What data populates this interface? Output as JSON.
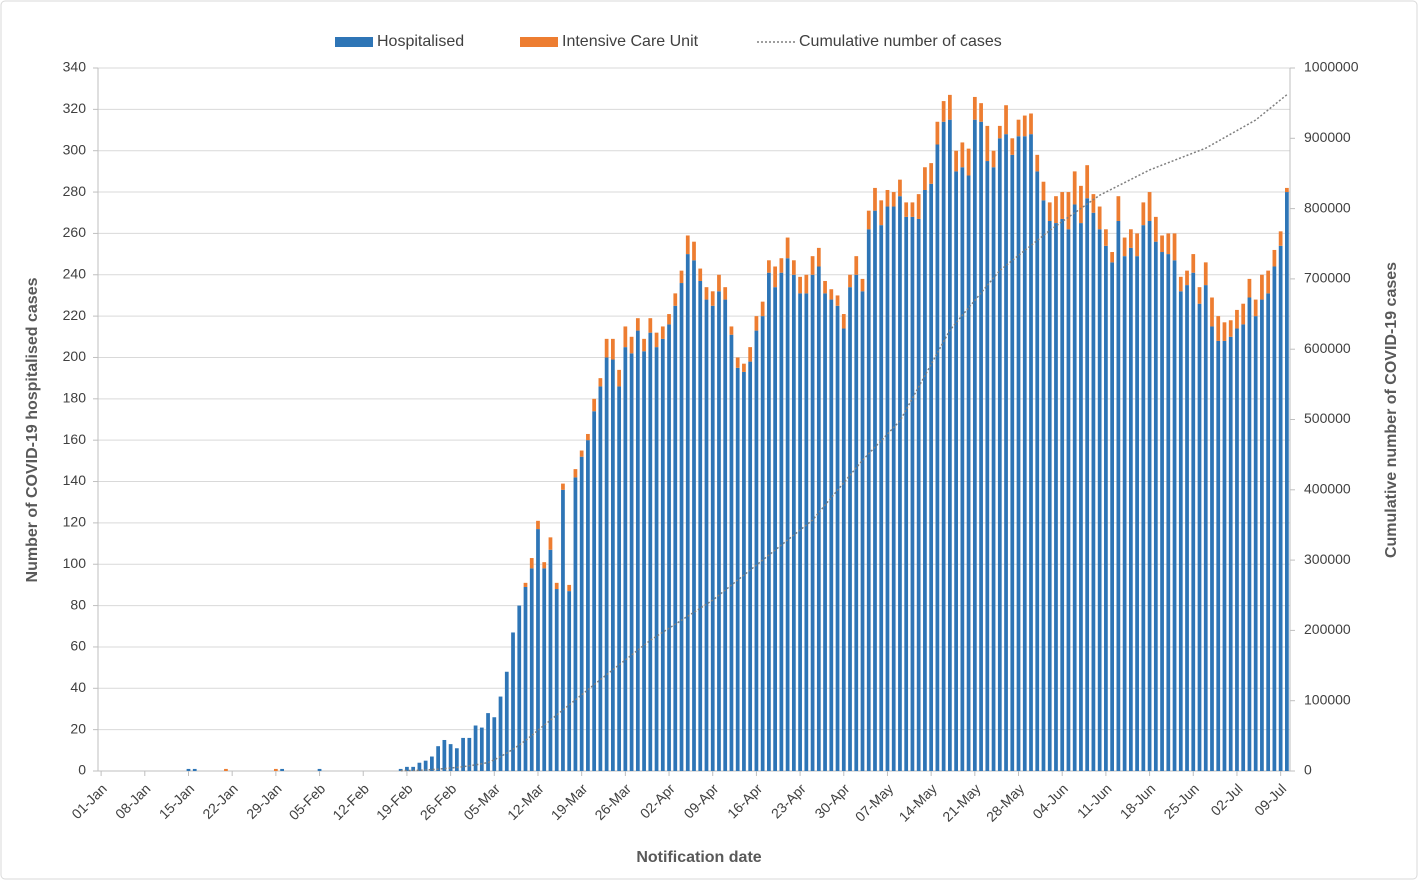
{
  "chart_data": {
    "type": "bar",
    "stacked": true,
    "x_label": "Notification date",
    "y_label": "Number of COVID-19 hospitalised cases",
    "y2_label": "Cumulative number of COVID-19 cases",
    "ylim": [
      0,
      340
    ],
    "yticks": [
      0,
      20,
      40,
      60,
      80,
      100,
      120,
      140,
      160,
      180,
      200,
      220,
      240,
      260,
      280,
      300,
      320,
      340
    ],
    "y2lim": [
      0,
      1000000
    ],
    "y2ticks": [
      0,
      100000,
      200000,
      300000,
      400000,
      500000,
      600000,
      700000,
      800000,
      900000,
      1000000
    ],
    "grid": true,
    "legend": "top",
    "categories": [
      "01-Jan",
      null,
      null,
      null,
      null,
      null,
      null,
      "08-Jan",
      null,
      null,
      null,
      null,
      null,
      null,
      "15-Jan",
      null,
      null,
      null,
      null,
      null,
      null,
      "22-Jan",
      null,
      null,
      null,
      null,
      null,
      null,
      "29-Jan",
      null,
      null,
      null,
      null,
      null,
      null,
      "05-Feb",
      null,
      null,
      null,
      null,
      null,
      null,
      "12-Feb",
      null,
      null,
      null,
      null,
      null,
      null,
      "19-Feb",
      null,
      null,
      null,
      null,
      null,
      null,
      "26-Feb",
      null,
      null,
      null,
      null,
      null,
      null,
      "05-Mar",
      null,
      null,
      null,
      null,
      null,
      null,
      "12-Mar",
      null,
      null,
      null,
      null,
      null,
      null,
      "19-Mar",
      null,
      null,
      null,
      null,
      null,
      null,
      "26-Mar",
      null,
      null,
      null,
      null,
      null,
      null,
      "02-Apr",
      null,
      null,
      null,
      null,
      null,
      null,
      "09-Apr",
      null,
      null,
      null,
      null,
      null,
      null,
      "16-Apr",
      null,
      null,
      null,
      null,
      null,
      null,
      "23-Apr",
      null,
      null,
      null,
      null,
      null,
      null,
      "30-Apr",
      null,
      null,
      null,
      null,
      null,
      null,
      "07-May",
      null,
      null,
      null,
      null,
      null,
      null,
      "14-May",
      null,
      null,
      null,
      null,
      null,
      null,
      "21-May",
      null,
      null,
      null,
      null,
      null,
      null,
      "28-May",
      null,
      null,
      null,
      null,
      null,
      null,
      "04-Jun",
      null,
      null,
      null,
      null,
      null,
      null,
      "11-Jun",
      null,
      null,
      null,
      null,
      null,
      null,
      "18-Jun",
      null,
      null,
      null,
      null,
      null,
      null,
      "25-Jun",
      null,
      null,
      null,
      null,
      null,
      null,
      "02-Jul",
      null,
      null,
      null,
      null,
      null,
      null,
      "09-Jul",
      null
    ],
    "series": [
      {
        "name": "Hospitalised",
        "color": "#2e75b6",
        "values": [
          0,
          0,
          0,
          0,
          0,
          0,
          0,
          0,
          0,
          0,
          0,
          0,
          0,
          0,
          1,
          1,
          0,
          0,
          0,
          0,
          0,
          0,
          0,
          0,
          0,
          0,
          0,
          0,
          0,
          1,
          0,
          0,
          0,
          0,
          0,
          1,
          0,
          0,
          0,
          0,
          0,
          0,
          0,
          0,
          0,
          0,
          0,
          0,
          1,
          2,
          2,
          4,
          5,
          7,
          12,
          15,
          13,
          11,
          16,
          16,
          22,
          21,
          28,
          26,
          36,
          48,
          67,
          80,
          89,
          98,
          117,
          98,
          107,
          88,
          136,
          87,
          142,
          152,
          160,
          174,
          186,
          200,
          199,
          186,
          205,
          202,
          213,
          203,
          212,
          205,
          209,
          216,
          225,
          236,
          250,
          247,
          237,
          228,
          225,
          232,
          228,
          211,
          195,
          193,
          198,
          213,
          220,
          241,
          234,
          241,
          248,
          240,
          231,
          231,
          240,
          244,
          231,
          228,
          225,
          214,
          234,
          240,
          232,
          262,
          271,
          264,
          273,
          273,
          278,
          268,
          268,
          267,
          281,
          284,
          303,
          314,
          315,
          290,
          292,
          288,
          315,
          314,
          295,
          292,
          306,
          308,
          298,
          307,
          307,
          308,
          290,
          276,
          266,
          265,
          267,
          262,
          274,
          265,
          277,
          270,
          262,
          254,
          246,
          266,
          249,
          253,
          249,
          264,
          266,
          256,
          251,
          250,
          247,
          232,
          235,
          241,
          226,
          235,
          215,
          208,
          208,
          210,
          214,
          216,
          229,
          220,
          228,
          231,
          244,
          254,
          280
        ]
      },
      {
        "name": "Intensive Care Unit",
        "color": "#ed7d31",
        "values": [
          0,
          0,
          0,
          0,
          0,
          0,
          0,
          0,
          0,
          0,
          0,
          0,
          0,
          0,
          0,
          0,
          0,
          0,
          0,
          0,
          1,
          0,
          0,
          0,
          0,
          0,
          0,
          0,
          1,
          0,
          0,
          0,
          0,
          0,
          0,
          0,
          0,
          0,
          0,
          0,
          0,
          0,
          0,
          0,
          0,
          0,
          0,
          0,
          0,
          0,
          0,
          0,
          0,
          0,
          0,
          0,
          0,
          0,
          0,
          0,
          0,
          0,
          0,
          0,
          0,
          0,
          0,
          0,
          2,
          5,
          4,
          3,
          6,
          3,
          3,
          3,
          4,
          3,
          3,
          6,
          4,
          9,
          10,
          8,
          10,
          8,
          6,
          6,
          7,
          7,
          6,
          5,
          6,
          6,
          9,
          9,
          6,
          6,
          7,
          8,
          6,
          4,
          5,
          4,
          7,
          7,
          7,
          6,
          10,
          7,
          10,
          7,
          8,
          9,
          9,
          9,
          6,
          5,
          5,
          7,
          6,
          9,
          6,
          9,
          11,
          12,
          8,
          7,
          8,
          7,
          7,
          12,
          11,
          10,
          11,
          10,
          12,
          10,
          12,
          13,
          11,
          9,
          17,
          8,
          6,
          14,
          8,
          8,
          10,
          10,
          8,
          9,
          9,
          13,
          13,
          18,
          16,
          18,
          16,
          9,
          11,
          8,
          5,
          12,
          9,
          9,
          11,
          11,
          14,
          12,
          8,
          10,
          13,
          7,
          7,
          9,
          8,
          11,
          14,
          12,
          9,
          8,
          9,
          10,
          9,
          8,
          12,
          11,
          8,
          7,
          2
        ]
      },
      {
        "name": "Cumulative number of cases",
        "color": "#7f7f7f",
        "type": "line",
        "axis": "y2",
        "values": [
          null,
          null,
          null,
          null,
          null,
          null,
          null,
          null,
          null,
          null,
          null,
          null,
          null,
          null,
          null,
          null,
          null,
          null,
          null,
          null,
          null,
          null,
          null,
          null,
          null,
          null,
          null,
          null,
          null,
          null,
          null,
          null,
          null,
          null,
          null,
          null,
          null,
          null,
          null,
          null,
          null,
          null,
          null,
          null,
          null,
          null,
          null,
          null,
          500,
          700,
          850,
          1000,
          1500,
          2000,
          2700,
          3400,
          4200,
          5100,
          6200,
          7400,
          8700,
          10300,
          12000,
          16000,
          20500,
          25500,
          31000,
          37000,
          43500,
          50500,
          58000,
          65200,
          72400,
          79600,
          86800,
          94000,
          101200,
          108400,
          115600,
          122800,
          130000,
          137000,
          144000,
          151000,
          158000,
          165000,
          172000,
          179000,
          186000,
          191700,
          197400,
          203100,
          208800,
          214500,
          220200,
          225900,
          231600,
          237300,
          243000,
          250100,
          257300,
          264400,
          271500,
          278600,
          285800,
          292900,
          300000,
          307100,
          314300,
          321400,
          328500,
          335600,
          342800,
          349900,
          357000,
          367600,
          378300,
          388900,
          399500,
          410100,
          420800,
          431400,
          442000,
          451300,
          460700,
          470000,
          479300,
          488700,
          498000,
          514100,
          530300,
          546400,
          562500,
          578600,
          594800,
          610900,
          627000,
          637600,
          648300,
          658900,
          669500,
          680100,
          690800,
          701400,
          712000,
          719100,
          726300,
          733400,
          740500,
          747600,
          754800,
          761900,
          769000,
          775300,
          781500,
          787800,
          794000,
          800300,
          806500,
          812800,
          819000,
          823500,
          828000,
          832500,
          837000,
          841500,
          846000,
          850500,
          855000,
          858400,
          861900,
          865300,
          868800,
          872200,
          875700,
          879100,
          882600,
          886000,
          891000,
          896000,
          901000,
          906000,
          911000,
          916000,
          921000,
          926000,
          933200,
          940400,
          947600,
          954800,
          962000
        ]
      }
    ]
  }
}
